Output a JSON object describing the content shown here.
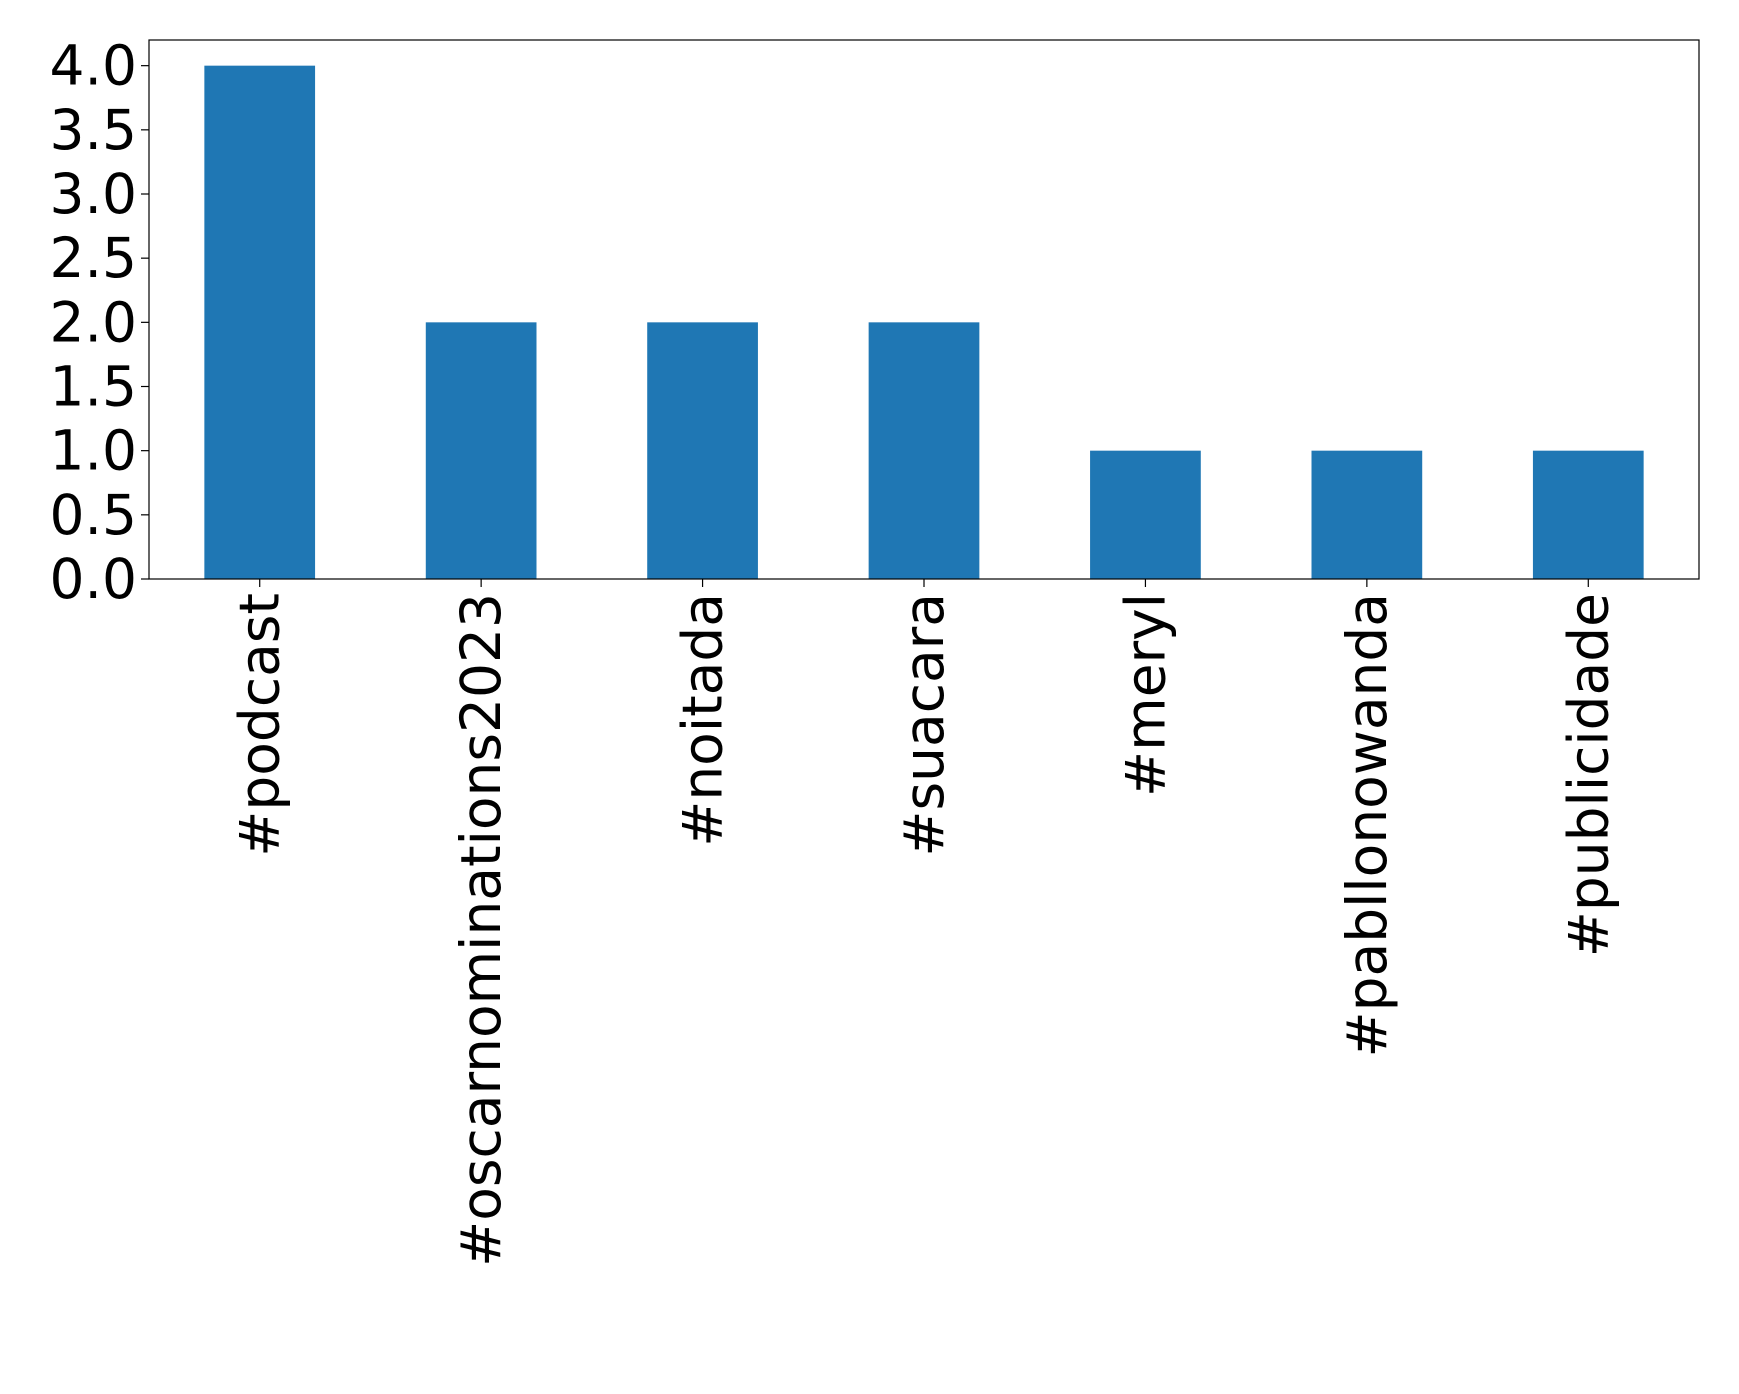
{
  "chart_data": {
    "type": "bar",
    "categories": [
      "#podcast",
      "#oscarnominations2023",
      "#noitada",
      "#suacara",
      "#meryl",
      "#pabllonowanda",
      "#publicidade"
    ],
    "values": [
      4,
      2,
      2,
      2,
      1,
      1,
      1
    ],
    "color": "#1f77b4",
    "ylim": [
      0,
      4.2
    ],
    "yticks": [
      {
        "value": 0,
        "label": "0.0"
      },
      {
        "value": 0.5,
        "label": "0.5"
      },
      {
        "value": 1,
        "label": "1.0"
      },
      {
        "value": 1.5,
        "label": "1.5"
      },
      {
        "value": 2,
        "label": "2.0"
      },
      {
        "value": 2.5,
        "label": "2.5"
      },
      {
        "value": 3,
        "label": "3.0"
      },
      {
        "value": 3.5,
        "label": "3.5"
      },
      {
        "value": 4,
        "label": "4.0"
      }
    ],
    "grid": false
  }
}
